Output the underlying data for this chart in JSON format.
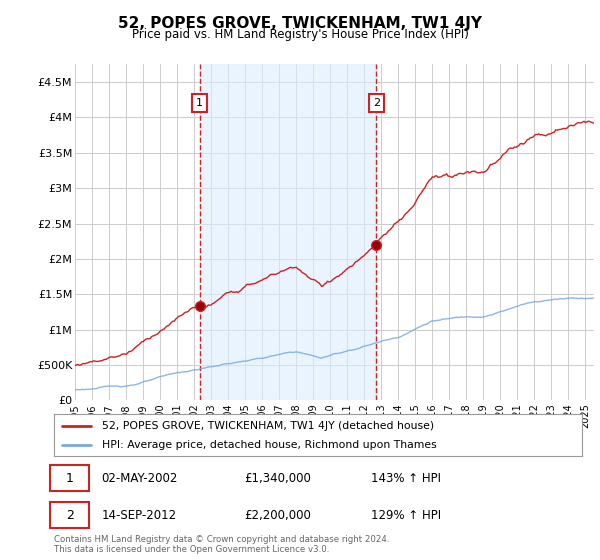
{
  "title": "52, POPES GROVE, TWICKENHAM, TW1 4JY",
  "subtitle": "Price paid vs. HM Land Registry's House Price Index (HPI)",
  "legend_line1": "52, POPES GROVE, TWICKENHAM, TW1 4JY (detached house)",
  "legend_line2": "HPI: Average price, detached house, Richmond upon Thames",
  "sale1_date": "02-MAY-2002",
  "sale1_price": "£1,340,000",
  "sale1_hpi": "143% ↑ HPI",
  "sale1_year": 2002.33,
  "sale1_value": 1340000,
  "sale2_date": "14-SEP-2012",
  "sale2_price": "£2,200,000",
  "sale2_hpi": "129% ↑ HPI",
  "sale2_year": 2012.7,
  "sale2_value": 2200000,
  "hpi_color": "#7aaadd",
  "price_color": "#cc2222",
  "vline_color": "#cc2222",
  "shade_color": "#ddeeff",
  "background_color": "#ffffff",
  "grid_color": "#cccccc",
  "ylim_min": 0,
  "ylim_max": 4750000,
  "xlim_min": 1995.0,
  "xlim_max": 2025.5,
  "footer_text": "Contains HM Land Registry data © Crown copyright and database right 2024.\nThis data is licensed under the Open Government Licence v3.0.",
  "yticks": [
    0,
    500000,
    1000000,
    1500000,
    2000000,
    2500000,
    3000000,
    3500000,
    4000000,
    4500000
  ],
  "ytick_labels": [
    "£0",
    "£500K",
    "£1M",
    "£1.5M",
    "£2M",
    "£2.5M",
    "£3M",
    "£3.5M",
    "£4M",
    "£4.5M"
  ]
}
